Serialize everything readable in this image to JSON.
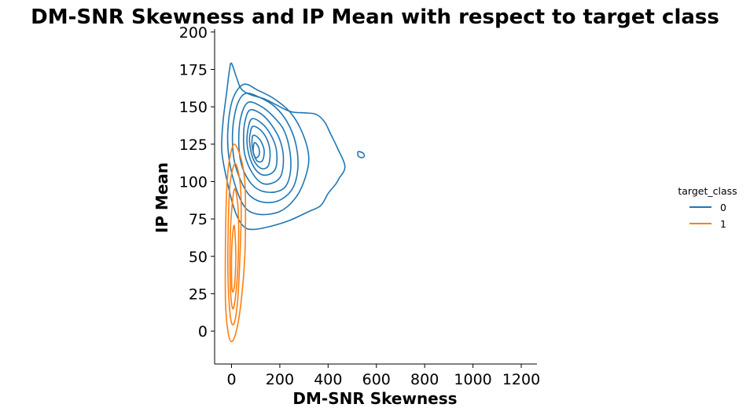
{
  "chart_data": {
    "type": "contour",
    "title": "DM-SNR Skewness and IP Mean with respect to target class",
    "xlabel": "DM-SNR Skewness",
    "ylabel": "IP Mean",
    "xlim": [
      -70,
      1265
    ],
    "ylim": [
      -22,
      202
    ],
    "x_ticks": [
      0,
      200,
      400,
      600,
      800,
      1000,
      1200
    ],
    "y_ticks": [
      0,
      25,
      50,
      75,
      100,
      125,
      150,
      175,
      200
    ],
    "grid": false,
    "legend": {
      "title": "target_class",
      "position": "center-right"
    },
    "series": [
      {
        "name": "0",
        "color": "#1f77b4",
        "levels": [
          [
            [
              0,
              179
            ],
            [
              20,
              170
            ],
            [
              40,
              162
            ],
            [
              80,
              158
            ],
            [
              140,
              155
            ],
            [
              240,
              147
            ],
            [
              300,
              146
            ],
            [
              350,
              145
            ],
            [
              385,
              140
            ],
            [
              410,
              132
            ],
            [
              440,
              122
            ],
            [
              470,
              110
            ],
            [
              445,
              102
            ],
            [
              430,
              98
            ],
            [
              400,
              92
            ],
            [
              370,
              84
            ],
            [
              320,
              80
            ],
            [
              240,
              74
            ],
            [
              160,
              70
            ],
            [
              90,
              68
            ],
            [
              50,
              70
            ],
            [
              15,
              80
            ],
            [
              -15,
              98
            ],
            [
              -40,
              120
            ],
            [
              -35,
              140
            ],
            [
              -20,
              160
            ],
            [
              -8,
              175
            ]
          ],
          [
            [
              50,
              165
            ],
            [
              110,
              161
            ],
            [
              180,
              155
            ],
            [
              250,
              145
            ],
            [
              300,
              130
            ],
            [
              320,
              115
            ],
            [
              300,
              100
            ],
            [
              260,
              88
            ],
            [
              200,
              80
            ],
            [
              120,
              78
            ],
            [
              60,
              82
            ],
            [
              20,
              95
            ],
            [
              -10,
              115
            ],
            [
              -15,
              135
            ],
            [
              5,
              155
            ]
          ],
          [
            [
              60,
              159
            ],
            [
              120,
              156
            ],
            [
              180,
              150
            ],
            [
              230,
              140
            ],
            [
              265,
              126
            ],
            [
              275,
              110
            ],
            [
              255,
              96
            ],
            [
              205,
              88
            ],
            [
              140,
              86
            ],
            [
              80,
              90
            ],
            [
              40,
              100
            ],
            [
              10,
              115
            ],
            [
              5,
              135
            ],
            [
              25,
              152
            ]
          ],
          [
            [
              70,
              153
            ],
            [
              125,
              150
            ],
            [
              170,
              144
            ],
            [
              215,
              135
            ],
            [
              240,
              122
            ],
            [
              245,
              108
            ],
            [
              225,
              97
            ],
            [
              180,
              93
            ],
            [
              120,
              94
            ],
            [
              75,
              100
            ],
            [
              40,
              112
            ],
            [
              30,
              128
            ],
            [
              40,
              144
            ]
          ],
          [
            [
              80,
              148
            ],
            [
              125,
              145
            ],
            [
              165,
              138
            ],
            [
              200,
              128
            ],
            [
              215,
              116
            ],
            [
              205,
              104
            ],
            [
              170,
              99
            ],
            [
              125,
              99
            ],
            [
              85,
              106
            ],
            [
              55,
              118
            ],
            [
              50,
              132
            ],
            [
              60,
              143
            ]
          ],
          [
            [
              85,
              142
            ],
            [
              125,
              139
            ],
            [
              160,
              132
            ],
            [
              185,
              122
            ],
            [
              185,
              110
            ],
            [
              160,
              105
            ],
            [
              120,
              105
            ],
            [
              85,
              112
            ],
            [
              65,
              124
            ],
            [
              68,
              135
            ]
          ],
          [
            [
              90,
              137
            ],
            [
              123,
              134
            ],
            [
              150,
              127
            ],
            [
              160,
              118
            ],
            [
              150,
              110
            ],
            [
              120,
              109
            ],
            [
              90,
              115
            ],
            [
              75,
              126
            ],
            [
              78,
              133
            ]
          ],
          [
            [
              92,
              131
            ],
            [
              118,
              128
            ],
            [
              135,
              121
            ],
            [
              128,
              114
            ],
            [
              105,
              114
            ],
            [
              88,
              121
            ],
            [
              85,
              128
            ]
          ],
          [
            [
              95,
              126
            ],
            [
              112,
              123
            ],
            [
              115,
              118
            ],
            [
              100,
              116
            ],
            [
              90,
              120
            ]
          ],
          [
            [
              525,
              120
            ],
            [
              545,
              119
            ],
            [
              550,
              117
            ],
            [
              540,
              116
            ],
            [
              525,
              117
            ]
          ]
        ]
      },
      {
        "name": "1",
        "color": "#ff7f0e",
        "levels": [
          [
            [
              12,
              125
            ],
            [
              40,
              115
            ],
            [
              55,
              100
            ],
            [
              58,
              80
            ],
            [
              55,
              50
            ],
            [
              40,
              20
            ],
            [
              20,
              0
            ],
            [
              0,
              -7
            ],
            [
              -15,
              0
            ],
            [
              -25,
              20
            ],
            [
              -25,
              60
            ],
            [
              -20,
              95
            ],
            [
              -8,
              115
            ]
          ],
          [
            [
              15,
              112
            ],
            [
              35,
              100
            ],
            [
              40,
              80
            ],
            [
              35,
              50
            ],
            [
              25,
              20
            ],
            [
              10,
              5
            ],
            [
              -5,
              10
            ],
            [
              -15,
              40
            ],
            [
              -12,
              80
            ],
            [
              -5,
              100
            ]
          ],
          [
            [
              15,
              95
            ],
            [
              28,
              80
            ],
            [
              28,
              50
            ],
            [
              18,
              25
            ],
            [
              5,
              15
            ],
            [
              -5,
              30
            ],
            [
              -5,
              65
            ],
            [
              5,
              88
            ]
          ],
          [
            [
              12,
              70
            ],
            [
              18,
              50
            ],
            [
              12,
              30
            ],
            [
              2,
              28
            ],
            [
              0,
              50
            ],
            [
              5,
              65
            ]
          ]
        ]
      }
    ]
  }
}
